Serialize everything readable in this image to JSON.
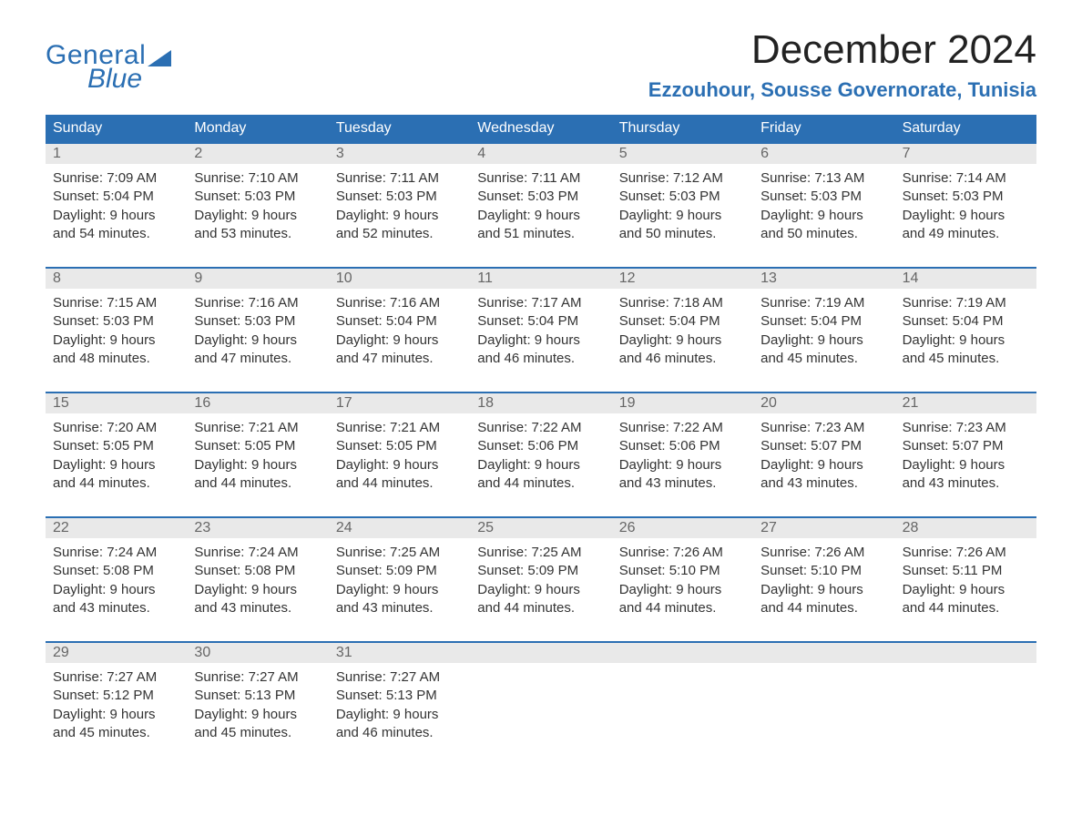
{
  "logo": {
    "line1": "General",
    "line2": "Blue"
  },
  "title": "December 2024",
  "location": "Ezzouhour, Sousse Governorate, Tunisia",
  "colors": {
    "brand": "#2b6fb3",
    "header_bg": "#2b6fb3",
    "header_text": "#ffffff",
    "daynum_bg": "#e9e9e9",
    "daynum_text": "#666666",
    "body_text": "#333333",
    "background": "#ffffff"
  },
  "typography": {
    "title_fontsize": 44,
    "location_fontsize": 22,
    "weekday_fontsize": 16,
    "cell_fontsize": 15
  },
  "weekdays": [
    "Sunday",
    "Monday",
    "Tuesday",
    "Wednesday",
    "Thursday",
    "Friday",
    "Saturday"
  ],
  "weeks": [
    [
      {
        "day": "1",
        "sunrise": "Sunrise: 7:09 AM",
        "sunset": "Sunset: 5:04 PM",
        "d1": "Daylight: 9 hours",
        "d2": "and 54 minutes."
      },
      {
        "day": "2",
        "sunrise": "Sunrise: 7:10 AM",
        "sunset": "Sunset: 5:03 PM",
        "d1": "Daylight: 9 hours",
        "d2": "and 53 minutes."
      },
      {
        "day": "3",
        "sunrise": "Sunrise: 7:11 AM",
        "sunset": "Sunset: 5:03 PM",
        "d1": "Daylight: 9 hours",
        "d2": "and 52 minutes."
      },
      {
        "day": "4",
        "sunrise": "Sunrise: 7:11 AM",
        "sunset": "Sunset: 5:03 PM",
        "d1": "Daylight: 9 hours",
        "d2": "and 51 minutes."
      },
      {
        "day": "5",
        "sunrise": "Sunrise: 7:12 AM",
        "sunset": "Sunset: 5:03 PM",
        "d1": "Daylight: 9 hours",
        "d2": "and 50 minutes."
      },
      {
        "day": "6",
        "sunrise": "Sunrise: 7:13 AM",
        "sunset": "Sunset: 5:03 PM",
        "d1": "Daylight: 9 hours",
        "d2": "and 50 minutes."
      },
      {
        "day": "7",
        "sunrise": "Sunrise: 7:14 AM",
        "sunset": "Sunset: 5:03 PM",
        "d1": "Daylight: 9 hours",
        "d2": "and 49 minutes."
      }
    ],
    [
      {
        "day": "8",
        "sunrise": "Sunrise: 7:15 AM",
        "sunset": "Sunset: 5:03 PM",
        "d1": "Daylight: 9 hours",
        "d2": "and 48 minutes."
      },
      {
        "day": "9",
        "sunrise": "Sunrise: 7:16 AM",
        "sunset": "Sunset: 5:03 PM",
        "d1": "Daylight: 9 hours",
        "d2": "and 47 minutes."
      },
      {
        "day": "10",
        "sunrise": "Sunrise: 7:16 AM",
        "sunset": "Sunset: 5:04 PM",
        "d1": "Daylight: 9 hours",
        "d2": "and 47 minutes."
      },
      {
        "day": "11",
        "sunrise": "Sunrise: 7:17 AM",
        "sunset": "Sunset: 5:04 PM",
        "d1": "Daylight: 9 hours",
        "d2": "and 46 minutes."
      },
      {
        "day": "12",
        "sunrise": "Sunrise: 7:18 AM",
        "sunset": "Sunset: 5:04 PM",
        "d1": "Daylight: 9 hours",
        "d2": "and 46 minutes."
      },
      {
        "day": "13",
        "sunrise": "Sunrise: 7:19 AM",
        "sunset": "Sunset: 5:04 PM",
        "d1": "Daylight: 9 hours",
        "d2": "and 45 minutes."
      },
      {
        "day": "14",
        "sunrise": "Sunrise: 7:19 AM",
        "sunset": "Sunset: 5:04 PM",
        "d1": "Daylight: 9 hours",
        "d2": "and 45 minutes."
      }
    ],
    [
      {
        "day": "15",
        "sunrise": "Sunrise: 7:20 AM",
        "sunset": "Sunset: 5:05 PM",
        "d1": "Daylight: 9 hours",
        "d2": "and 44 minutes."
      },
      {
        "day": "16",
        "sunrise": "Sunrise: 7:21 AM",
        "sunset": "Sunset: 5:05 PM",
        "d1": "Daylight: 9 hours",
        "d2": "and 44 minutes."
      },
      {
        "day": "17",
        "sunrise": "Sunrise: 7:21 AM",
        "sunset": "Sunset: 5:05 PM",
        "d1": "Daylight: 9 hours",
        "d2": "and 44 minutes."
      },
      {
        "day": "18",
        "sunrise": "Sunrise: 7:22 AM",
        "sunset": "Sunset: 5:06 PM",
        "d1": "Daylight: 9 hours",
        "d2": "and 44 minutes."
      },
      {
        "day": "19",
        "sunrise": "Sunrise: 7:22 AM",
        "sunset": "Sunset: 5:06 PM",
        "d1": "Daylight: 9 hours",
        "d2": "and 43 minutes."
      },
      {
        "day": "20",
        "sunrise": "Sunrise: 7:23 AM",
        "sunset": "Sunset: 5:07 PM",
        "d1": "Daylight: 9 hours",
        "d2": "and 43 minutes."
      },
      {
        "day": "21",
        "sunrise": "Sunrise: 7:23 AM",
        "sunset": "Sunset: 5:07 PM",
        "d1": "Daylight: 9 hours",
        "d2": "and 43 minutes."
      }
    ],
    [
      {
        "day": "22",
        "sunrise": "Sunrise: 7:24 AM",
        "sunset": "Sunset: 5:08 PM",
        "d1": "Daylight: 9 hours",
        "d2": "and 43 minutes."
      },
      {
        "day": "23",
        "sunrise": "Sunrise: 7:24 AM",
        "sunset": "Sunset: 5:08 PM",
        "d1": "Daylight: 9 hours",
        "d2": "and 43 minutes."
      },
      {
        "day": "24",
        "sunrise": "Sunrise: 7:25 AM",
        "sunset": "Sunset: 5:09 PM",
        "d1": "Daylight: 9 hours",
        "d2": "and 43 minutes."
      },
      {
        "day": "25",
        "sunrise": "Sunrise: 7:25 AM",
        "sunset": "Sunset: 5:09 PM",
        "d1": "Daylight: 9 hours",
        "d2": "and 44 minutes."
      },
      {
        "day": "26",
        "sunrise": "Sunrise: 7:26 AM",
        "sunset": "Sunset: 5:10 PM",
        "d1": "Daylight: 9 hours",
        "d2": "and 44 minutes."
      },
      {
        "day": "27",
        "sunrise": "Sunrise: 7:26 AM",
        "sunset": "Sunset: 5:10 PM",
        "d1": "Daylight: 9 hours",
        "d2": "and 44 minutes."
      },
      {
        "day": "28",
        "sunrise": "Sunrise: 7:26 AM",
        "sunset": "Sunset: 5:11 PM",
        "d1": "Daylight: 9 hours",
        "d2": "and 44 minutes."
      }
    ],
    [
      {
        "day": "29",
        "sunrise": "Sunrise: 7:27 AM",
        "sunset": "Sunset: 5:12 PM",
        "d1": "Daylight: 9 hours",
        "d2": "and 45 minutes."
      },
      {
        "day": "30",
        "sunrise": "Sunrise: 7:27 AM",
        "sunset": "Sunset: 5:13 PM",
        "d1": "Daylight: 9 hours",
        "d2": "and 45 minutes."
      },
      {
        "day": "31",
        "sunrise": "Sunrise: 7:27 AM",
        "sunset": "Sunset: 5:13 PM",
        "d1": "Daylight: 9 hours",
        "d2": "and 46 minutes."
      },
      null,
      null,
      null,
      null
    ]
  ]
}
